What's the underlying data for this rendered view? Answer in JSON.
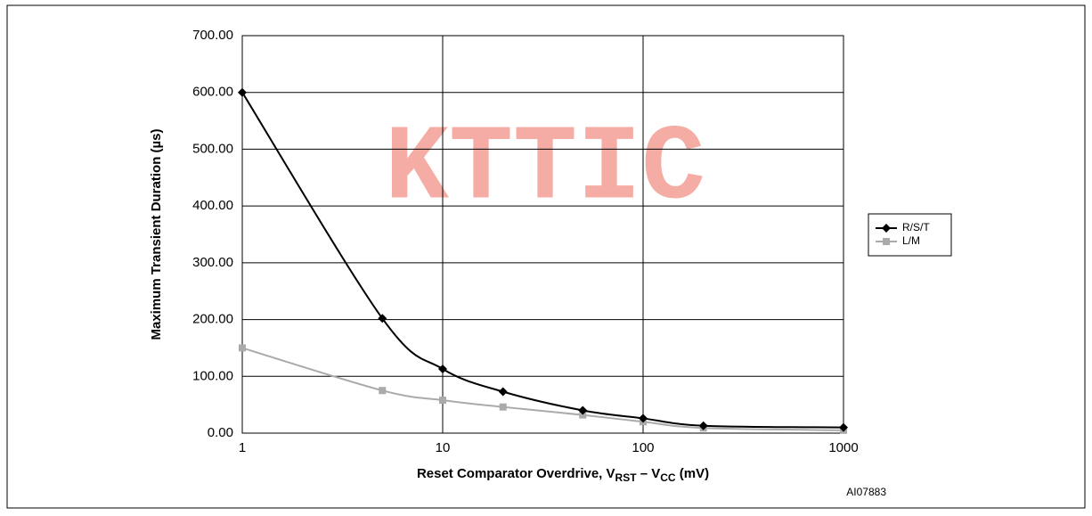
{
  "chart_data": {
    "type": "line",
    "watermark": "KTTIC",
    "ylabel": "Maximum Transient Duration (µs)",
    "xlabel": [
      "Reset Comparator Overdrive,  V",
      "RST",
      " – V",
      "CC",
      " (mV)"
    ],
    "footnote": "AI07883",
    "x": [
      1,
      5,
      10,
      20,
      50,
      100,
      200,
      1000
    ],
    "series": [
      {
        "name": "R/S/T",
        "color": "#000000",
        "marker": "diamond",
        "values": [
          600,
          202,
          113,
          73,
          40,
          26,
          13,
          10
        ]
      },
      {
        "name": "L/M",
        "color": "#aaaaaa",
        "marker": "square",
        "values": [
          150,
          75,
          58,
          46,
          32,
          20,
          9,
          5
        ]
      }
    ],
    "xscale": "log",
    "xlim": [
      1,
      1000
    ],
    "xticks": [
      1,
      10,
      100,
      1000
    ],
    "ylim": [
      0,
      700
    ],
    "yticks": [
      {
        "value": 0,
        "label": "0.00"
      },
      {
        "value": 100,
        "label": "100.00"
      },
      {
        "value": 200,
        "label": "200.00"
      },
      {
        "value": 300,
        "label": "300.00"
      },
      {
        "value": 400,
        "label": "400.00"
      },
      {
        "value": 500,
        "label": "500.00"
      },
      {
        "value": 600,
        "label": "600.00"
      },
      {
        "value": 700,
        "label": "700.00"
      }
    ],
    "grid": true,
    "legend": "right"
  }
}
